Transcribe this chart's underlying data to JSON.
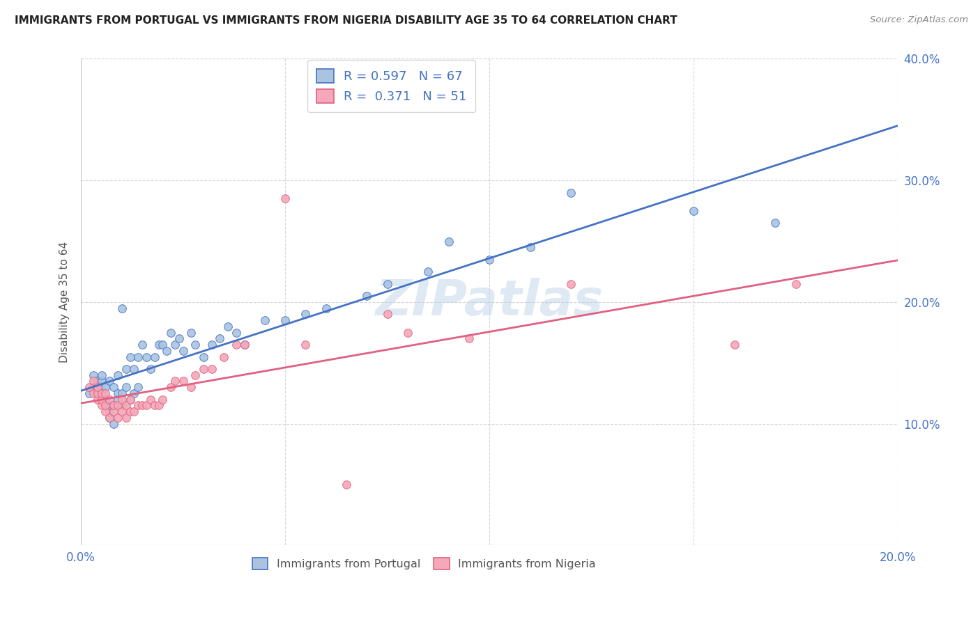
{
  "title": "IMMIGRANTS FROM PORTUGAL VS IMMIGRANTS FROM NIGERIA DISABILITY AGE 35 TO 64 CORRELATION CHART",
  "source": "Source: ZipAtlas.com",
  "ylabel": "Disability Age 35 to 64",
  "xlim": [
    0.0,
    0.2
  ],
  "ylim": [
    0.0,
    0.4
  ],
  "xticks": [
    0.0,
    0.05,
    0.1,
    0.15,
    0.2
  ],
  "yticks": [
    0.0,
    0.1,
    0.2,
    0.3,
    0.4
  ],
  "xtick_labels": [
    "0.0%",
    "",
    "",
    "",
    "20.0%"
  ],
  "ytick_labels": [
    "",
    "10.0%",
    "20.0%",
    "30.0%",
    "40.0%"
  ],
  "portugal_color": "#aac4e0",
  "nigeria_color": "#f4a8b8",
  "portugal_line_color": "#4472c4",
  "nigeria_line_color": "#e06080",
  "legend_portugal_label": "R = 0.597   N = 67",
  "legend_nigeria_label": "R =  0.371   N = 51",
  "watermark": "ZIPatlas",
  "background_color": "#ffffff",
  "grid_color": "#cccccc",
  "portugal_scatter_x": [
    0.002,
    0.003,
    0.003,
    0.004,
    0.004,
    0.004,
    0.005,
    0.005,
    0.005,
    0.005,
    0.005,
    0.006,
    0.006,
    0.006,
    0.007,
    0.007,
    0.007,
    0.007,
    0.008,
    0.008,
    0.008,
    0.009,
    0.009,
    0.009,
    0.01,
    0.01,
    0.01,
    0.011,
    0.011,
    0.012,
    0.012,
    0.013,
    0.013,
    0.014,
    0.014,
    0.015,
    0.016,
    0.017,
    0.018,
    0.019,
    0.02,
    0.021,
    0.022,
    0.023,
    0.024,
    0.025,
    0.027,
    0.028,
    0.03,
    0.032,
    0.034,
    0.036,
    0.038,
    0.04,
    0.045,
    0.05,
    0.055,
    0.06,
    0.07,
    0.075,
    0.085,
    0.09,
    0.1,
    0.11,
    0.12,
    0.15,
    0.17
  ],
  "portugal_scatter_y": [
    0.125,
    0.13,
    0.14,
    0.125,
    0.13,
    0.135,
    0.12,
    0.125,
    0.13,
    0.135,
    0.14,
    0.115,
    0.12,
    0.13,
    0.105,
    0.11,
    0.115,
    0.135,
    0.1,
    0.115,
    0.13,
    0.12,
    0.125,
    0.14,
    0.115,
    0.125,
    0.195,
    0.13,
    0.145,
    0.12,
    0.155,
    0.125,
    0.145,
    0.13,
    0.155,
    0.165,
    0.155,
    0.145,
    0.155,
    0.165,
    0.165,
    0.16,
    0.175,
    0.165,
    0.17,
    0.16,
    0.175,
    0.165,
    0.155,
    0.165,
    0.17,
    0.18,
    0.175,
    0.165,
    0.185,
    0.185,
    0.19,
    0.195,
    0.205,
    0.215,
    0.225,
    0.25,
    0.235,
    0.245,
    0.29,
    0.275,
    0.265
  ],
  "nigeria_scatter_x": [
    0.002,
    0.003,
    0.003,
    0.004,
    0.004,
    0.004,
    0.005,
    0.005,
    0.005,
    0.006,
    0.006,
    0.006,
    0.007,
    0.007,
    0.008,
    0.008,
    0.009,
    0.009,
    0.01,
    0.01,
    0.011,
    0.011,
    0.012,
    0.012,
    0.013,
    0.014,
    0.015,
    0.016,
    0.017,
    0.018,
    0.019,
    0.02,
    0.022,
    0.023,
    0.025,
    0.027,
    0.028,
    0.03,
    0.032,
    0.035,
    0.038,
    0.04,
    0.05,
    0.055,
    0.065,
    0.075,
    0.08,
    0.095,
    0.12,
    0.16,
    0.175
  ],
  "nigeria_scatter_y": [
    0.13,
    0.125,
    0.135,
    0.12,
    0.125,
    0.13,
    0.115,
    0.12,
    0.125,
    0.11,
    0.115,
    0.125,
    0.105,
    0.12,
    0.11,
    0.115,
    0.105,
    0.115,
    0.11,
    0.12,
    0.105,
    0.115,
    0.11,
    0.12,
    0.11,
    0.115,
    0.115,
    0.115,
    0.12,
    0.115,
    0.115,
    0.12,
    0.13,
    0.135,
    0.135,
    0.13,
    0.14,
    0.145,
    0.145,
    0.155,
    0.165,
    0.165,
    0.285,
    0.165,
    0.05,
    0.19,
    0.175,
    0.17,
    0.215,
    0.165,
    0.215
  ]
}
